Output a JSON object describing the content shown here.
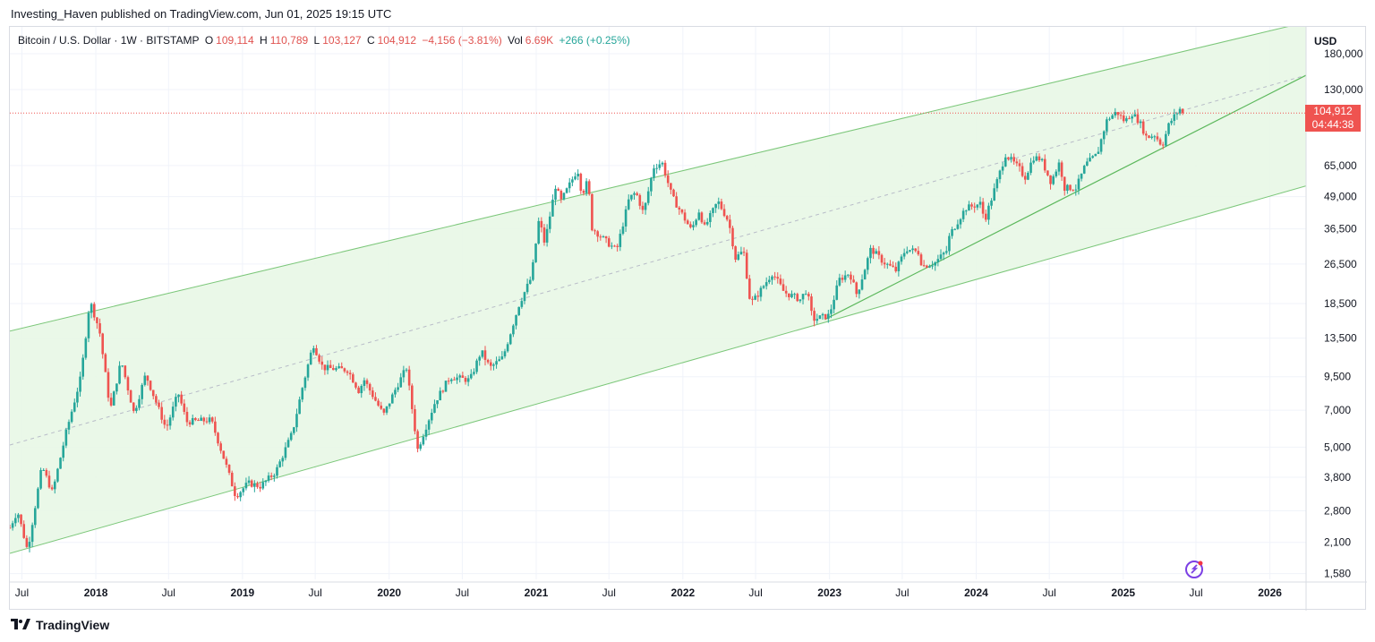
{
  "header": {
    "publisher": "Investing_Haven published on TradingView.com, Jun 01, 2025 19:15 UTC"
  },
  "legend": {
    "symbol": "Bitcoin / U.S. Dollar · 1W · BITSTAMP",
    "o_label": "O",
    "o_value": "109,114",
    "h_label": "H",
    "h_value": "110,789",
    "l_label": "L",
    "l_value": "103,127",
    "c_label": "C",
    "c_value": "104,912",
    "change": "−4,156 (−3.81%)",
    "vol_label": "Vol",
    "vol_value": "6.69K",
    "vol_change": "+266 (+0.25%)"
  },
  "price_axis": {
    "currency": "USD",
    "ticks": [
      "180,000",
      "130,000",
      "65,000",
      "49,000",
      "36,500",
      "26,500",
      "18,500",
      "13,500",
      "9,500",
      "7,000",
      "5,000",
      "3,800",
      "2,800",
      "2,100",
      "1,580"
    ]
  },
  "price_tag": {
    "price": "104,912",
    "countdown": "04:44:38"
  },
  "time_axis": {
    "labels": [
      {
        "text": "Jul",
        "bold": false
      },
      {
        "text": "2018",
        "bold": true
      },
      {
        "text": "Jul",
        "bold": false
      },
      {
        "text": "2019",
        "bold": true
      },
      {
        "text": "Jul",
        "bold": false
      },
      {
        "text": "2020",
        "bold": true
      },
      {
        "text": "Jul",
        "bold": false
      },
      {
        "text": "2021",
        "bold": true
      },
      {
        "text": "Jul",
        "bold": false
      },
      {
        "text": "2022",
        "bold": true
      },
      {
        "text": "Jul",
        "bold": false
      },
      {
        "text": "2023",
        "bold": true
      },
      {
        "text": "Jul",
        "bold": false
      },
      {
        "text": "2024",
        "bold": true
      },
      {
        "text": "Jul",
        "bold": false
      },
      {
        "text": "2025",
        "bold": true
      },
      {
        "text": "Jul",
        "bold": false
      },
      {
        "text": "2026",
        "bold": true
      }
    ]
  },
  "footer": {
    "brand": "TradingView"
  },
  "colors": {
    "up": "#26a69a",
    "down": "#ef5350",
    "channel_fill": "#e8f7e6",
    "channel_line": "#7cc77a",
    "price_line": "#ef5350"
  },
  "chart_data": {
    "type": "candlestick",
    "title": "Bitcoin / U.S. Dollar · 1W · BITSTAMP",
    "xlabel": "",
    "ylabel": "",
    "y_scale": "log",
    "ylim": [
      1500,
      230000
    ],
    "xlim": [
      "2017-06-01",
      "2026-04-01"
    ],
    "grid": true,
    "last_close": 104912,
    "anchors": [
      {
        "date": "2017-06-01",
        "price": 2400
      },
      {
        "date": "2017-06-20",
        "price": 2800
      },
      {
        "date": "2017-07-15",
        "price": 1950
      },
      {
        "date": "2017-08-20",
        "price": 4200
      },
      {
        "date": "2017-09-15",
        "price": 3300
      },
      {
        "date": "2017-10-20",
        "price": 5800
      },
      {
        "date": "2017-11-25",
        "price": 9500
      },
      {
        "date": "2017-12-17",
        "price": 19000
      },
      {
        "date": "2018-01-10",
        "price": 14500
      },
      {
        "date": "2018-02-06",
        "price": 7000
      },
      {
        "date": "2018-03-05",
        "price": 11000
      },
      {
        "date": "2018-04-06",
        "price": 6800
      },
      {
        "date": "2018-05-05",
        "price": 9700
      },
      {
        "date": "2018-06-25",
        "price": 5900
      },
      {
        "date": "2018-07-25",
        "price": 8200
      },
      {
        "date": "2018-08-15",
        "price": 6300
      },
      {
        "date": "2018-10-15",
        "price": 6400
      },
      {
        "date": "2018-11-20",
        "price": 4300
      },
      {
        "date": "2018-12-15",
        "price": 3200
      },
      {
        "date": "2019-01-15",
        "price": 3600
      },
      {
        "date": "2019-02-15",
        "price": 3500
      },
      {
        "date": "2019-03-25",
        "price": 4000
      },
      {
        "date": "2019-05-05",
        "price": 5700
      },
      {
        "date": "2019-05-30",
        "price": 8600
      },
      {
        "date": "2019-06-26",
        "price": 12800
      },
      {
        "date": "2019-07-20",
        "price": 10300
      },
      {
        "date": "2019-09-20",
        "price": 10100
      },
      {
        "date": "2019-10-20",
        "price": 8200
      },
      {
        "date": "2019-10-28",
        "price": 9400
      },
      {
        "date": "2019-12-18",
        "price": 6700
      },
      {
        "date": "2020-01-20",
        "price": 8700
      },
      {
        "date": "2020-02-13",
        "price": 10300
      },
      {
        "date": "2020-03-12",
        "price": 4900
      },
      {
        "date": "2020-04-25",
        "price": 7600
      },
      {
        "date": "2020-06-01",
        "price": 9500
      },
      {
        "date": "2020-07-20",
        "price": 9200
      },
      {
        "date": "2020-08-17",
        "price": 12000
      },
      {
        "date": "2020-09-08",
        "price": 10300
      },
      {
        "date": "2020-10-10",
        "price": 11300
      },
      {
        "date": "2020-11-20",
        "price": 18500
      },
      {
        "date": "2020-12-20",
        "price": 23500
      },
      {
        "date": "2021-01-08",
        "price": 40000
      },
      {
        "date": "2021-01-22",
        "price": 32000
      },
      {
        "date": "2021-02-20",
        "price": 56000
      },
      {
        "date": "2021-03-01",
        "price": 46000
      },
      {
        "date": "2021-04-14",
        "price": 63000
      },
      {
        "date": "2021-04-25",
        "price": 50000
      },
      {
        "date": "2021-05-10",
        "price": 57000
      },
      {
        "date": "2021-05-19",
        "price": 37000
      },
      {
        "date": "2021-06-20",
        "price": 33000
      },
      {
        "date": "2021-07-20",
        "price": 30000
      },
      {
        "date": "2021-08-20",
        "price": 48000
      },
      {
        "date": "2021-09-06",
        "price": 51000
      },
      {
        "date": "2021-09-25",
        "price": 42000
      },
      {
        "date": "2021-10-20",
        "price": 64000
      },
      {
        "date": "2021-11-10",
        "price": 67000
      },
      {
        "date": "2021-12-05",
        "price": 49000
      },
      {
        "date": "2022-01-22",
        "price": 36000
      },
      {
        "date": "2022-02-10",
        "price": 43000
      },
      {
        "date": "2022-02-24",
        "price": 37000
      },
      {
        "date": "2022-03-29",
        "price": 47000
      },
      {
        "date": "2022-04-25",
        "price": 39000
      },
      {
        "date": "2022-05-12",
        "price": 28000
      },
      {
        "date": "2022-06-01",
        "price": 30000
      },
      {
        "date": "2022-06-18",
        "price": 18500
      },
      {
        "date": "2022-07-01",
        "price": 19500
      },
      {
        "date": "2022-08-12",
        "price": 24500
      },
      {
        "date": "2022-09-10",
        "price": 20500
      },
      {
        "date": "2022-10-20",
        "price": 19200
      },
      {
        "date": "2022-11-05",
        "price": 21000
      },
      {
        "date": "2022-11-20",
        "price": 16000
      },
      {
        "date": "2022-12-31",
        "price": 16600
      },
      {
        "date": "2023-01-25",
        "price": 23000
      },
      {
        "date": "2023-02-20",
        "price": 24500
      },
      {
        "date": "2023-03-10",
        "price": 20000
      },
      {
        "date": "2023-04-14",
        "price": 30500
      },
      {
        "date": "2023-05-15",
        "price": 27000
      },
      {
        "date": "2023-06-15",
        "price": 25000
      },
      {
        "date": "2023-07-10",
        "price": 30500
      },
      {
        "date": "2023-08-10",
        "price": 29500
      },
      {
        "date": "2023-08-20",
        "price": 26000
      },
      {
        "date": "2023-09-20",
        "price": 26800
      },
      {
        "date": "2023-10-20",
        "price": 30000
      },
      {
        "date": "2023-10-27",
        "price": 34500
      },
      {
        "date": "2023-12-05",
        "price": 44000
      },
      {
        "date": "2024-01-12",
        "price": 46000
      },
      {
        "date": "2024-01-22",
        "price": 39500
      },
      {
        "date": "2024-02-15",
        "price": 52000
      },
      {
        "date": "2024-03-14",
        "price": 72000
      },
      {
        "date": "2024-04-18",
        "price": 63000
      },
      {
        "date": "2024-05-01",
        "price": 58000
      },
      {
        "date": "2024-05-22",
        "price": 70000
      },
      {
        "date": "2024-06-10",
        "price": 69000
      },
      {
        "date": "2024-07-05",
        "price": 56000
      },
      {
        "date": "2024-07-28",
        "price": 68000
      },
      {
        "date": "2024-08-05",
        "price": 53000
      },
      {
        "date": "2024-09-06",
        "price": 53000
      },
      {
        "date": "2024-09-29",
        "price": 65500
      },
      {
        "date": "2024-10-28",
        "price": 72000
      },
      {
        "date": "2024-11-12",
        "price": 88000
      },
      {
        "date": "2024-11-22",
        "price": 99000
      },
      {
        "date": "2024-12-16",
        "price": 106000
      },
      {
        "date": "2025-01-05",
        "price": 97000
      },
      {
        "date": "2025-01-22",
        "price": 105000
      },
      {
        "date": "2025-02-10",
        "price": 97000
      },
      {
        "date": "2025-02-28",
        "price": 84000
      },
      {
        "date": "2025-03-20",
        "price": 86000
      },
      {
        "date": "2025-04-08",
        "price": 78000
      },
      {
        "date": "2025-04-25",
        "price": 95000
      },
      {
        "date": "2025-05-12",
        "price": 104000
      },
      {
        "date": "2025-05-22",
        "price": 109000
      },
      {
        "date": "2025-06-01",
        "price": 104912
      }
    ],
    "channel": {
      "upper": [
        {
          "date": "2017-06-01",
          "price": 14400
        },
        {
          "date": "2026-04-01",
          "price": 240000
        }
      ],
      "middle": [
        {
          "date": "2017-06-01",
          "price": 5100
        },
        {
          "date": "2026-04-01",
          "price": 148000
        }
      ],
      "lower": [
        {
          "date": "2017-06-01",
          "price": 1900
        },
        {
          "date": "2026-04-01",
          "price": 54000
        }
      ],
      "support": [
        {
          "date": "2022-12-20",
          "price": 16000
        },
        {
          "date": "2026-04-01",
          "price": 148000
        }
      ]
    }
  }
}
